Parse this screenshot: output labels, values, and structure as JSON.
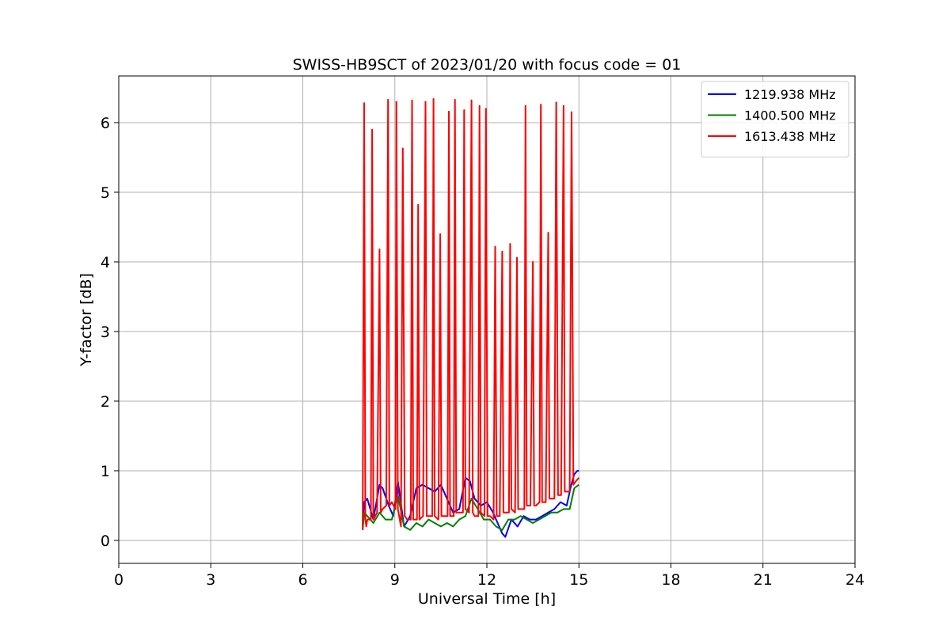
{
  "chart_data": {
    "type": "line",
    "title": "SWISS-HB9SCT of 2023/01/20 with focus code = 01",
    "xlabel": "Universal Time [h]",
    "ylabel": "Y-factor [dB]",
    "xlim": [
      0,
      24
    ],
    "ylim": [
      -0.33,
      6.67
    ],
    "xticks": [
      0,
      3,
      6,
      9,
      12,
      15,
      18,
      21,
      24
    ],
    "yticks": [
      0,
      1,
      2,
      3,
      4,
      5,
      6
    ],
    "grid": true,
    "legend_position": "top-right",
    "series": [
      {
        "name": "1219.938 MHz",
        "color": "#0000ff",
        "x": [
          7.95,
          8.0,
          8.1,
          8.3,
          8.5,
          8.6,
          8.8,
          8.95,
          9.1,
          9.3,
          9.5,
          9.7,
          9.9,
          10.1,
          10.3,
          10.5,
          10.7,
          10.9,
          11.1,
          11.3,
          11.45,
          11.6,
          11.8,
          12.0,
          12.2,
          12.4,
          12.5,
          12.6,
          12.8,
          13.0,
          13.2,
          13.4,
          13.6,
          13.8,
          14.0,
          14.2,
          14.4,
          14.6,
          14.75,
          14.85,
          14.95,
          15.0
        ],
        "y": [
          0.2,
          0.55,
          0.6,
          0.3,
          0.8,
          0.75,
          0.5,
          0.35,
          0.85,
          0.2,
          0.35,
          0.75,
          0.8,
          0.75,
          0.7,
          0.8,
          0.6,
          0.4,
          0.45,
          0.9,
          0.85,
          0.6,
          0.5,
          0.55,
          0.4,
          0.2,
          0.1,
          0.05,
          0.3,
          0.2,
          0.35,
          0.3,
          0.3,
          0.35,
          0.4,
          0.45,
          0.55,
          0.5,
          0.8,
          0.95,
          1.0,
          1.0
        ]
      },
      {
        "name": "1400.500 MHz",
        "color": "#008000",
        "x": [
          7.95,
          8.0,
          8.1,
          8.3,
          8.5,
          8.7,
          8.9,
          9.1,
          9.3,
          9.5,
          9.7,
          9.9,
          10.1,
          10.3,
          10.5,
          10.7,
          10.9,
          11.1,
          11.3,
          11.5,
          11.7,
          11.9,
          12.1,
          12.3,
          12.5,
          12.7,
          12.9,
          13.1,
          13.3,
          13.5,
          13.7,
          13.9,
          14.1,
          14.3,
          14.5,
          14.7,
          14.85,
          15.0
        ],
        "y": [
          0.15,
          0.4,
          0.35,
          0.25,
          0.4,
          0.3,
          0.3,
          0.65,
          0.2,
          0.15,
          0.25,
          0.2,
          0.3,
          0.25,
          0.2,
          0.25,
          0.2,
          0.3,
          0.35,
          0.6,
          0.45,
          0.3,
          0.3,
          0.2,
          0.15,
          0.3,
          0.3,
          0.35,
          0.3,
          0.25,
          0.3,
          0.35,
          0.4,
          0.4,
          0.45,
          0.45,
          0.75,
          0.8
        ]
      },
      {
        "name": "1613.438 MHz",
        "color": "#ff0000",
        "x": [
          7.95,
          8.0,
          8.04,
          8.07,
          8.1,
          8.22,
          8.26,
          8.3,
          8.42,
          8.5,
          8.54,
          8.6,
          8.72,
          8.78,
          8.82,
          8.9,
          9.02,
          9.05,
          9.1,
          9.2,
          9.26,
          9.32,
          9.4,
          9.52,
          9.56,
          9.6,
          9.72,
          9.76,
          9.8,
          9.92,
          10.0,
          10.04,
          10.1,
          10.22,
          10.26,
          10.3,
          10.42,
          10.48,
          10.52,
          10.6,
          10.72,
          10.76,
          10.8,
          10.92,
          10.96,
          11.0,
          11.1,
          11.22,
          11.26,
          11.3,
          11.42,
          11.5,
          11.54,
          11.6,
          11.72,
          11.76,
          11.8,
          11.92,
          11.97,
          12.02,
          12.1,
          12.22,
          12.27,
          12.32,
          12.42,
          12.5,
          12.54,
          12.6,
          12.72,
          12.76,
          12.8,
          12.92,
          12.98,
          13.02,
          13.1,
          13.22,
          13.26,
          13.3,
          13.42,
          13.5,
          13.54,
          13.6,
          13.72,
          13.76,
          13.8,
          13.92,
          14.0,
          14.04,
          14.1,
          14.2,
          14.26,
          14.32,
          14.42,
          14.5,
          14.54,
          14.6,
          14.7,
          14.76,
          14.82,
          14.9,
          15.0
        ],
        "y": [
          0.15,
          6.28,
          0.3,
          0.2,
          0.3,
          0.3,
          5.9,
          0.3,
          0.4,
          4.18,
          0.4,
          0.45,
          0.5,
          6.33,
          0.5,
          0.55,
          0.45,
          6.3,
          0.45,
          0.2,
          5.63,
          0.35,
          0.3,
          0.3,
          6.32,
          0.3,
          0.3,
          4.82,
          0.3,
          0.35,
          6.3,
          0.35,
          0.35,
          0.35,
          6.34,
          0.35,
          0.3,
          4.4,
          0.35,
          0.35,
          0.35,
          6.16,
          0.35,
          0.35,
          6.33,
          0.4,
          0.4,
          0.4,
          6.18,
          0.45,
          0.4,
          6.32,
          0.4,
          0.35,
          0.35,
          6.24,
          0.4,
          0.35,
          6.2,
          0.35,
          0.35,
          0.3,
          4.22,
          0.35,
          0.35,
          4.15,
          0.4,
          0.4,
          0.4,
          4.26,
          0.45,
          0.4,
          4.06,
          0.45,
          0.45,
          0.45,
          6.24,
          0.5,
          0.5,
          4.0,
          0.5,
          0.5,
          0.55,
          6.26,
          0.55,
          0.55,
          4.42,
          0.6,
          0.6,
          0.6,
          6.29,
          0.65,
          0.65,
          6.24,
          0.7,
          0.7,
          0.7,
          6.15,
          0.8,
          0.85,
          0.9
        ]
      }
    ]
  }
}
